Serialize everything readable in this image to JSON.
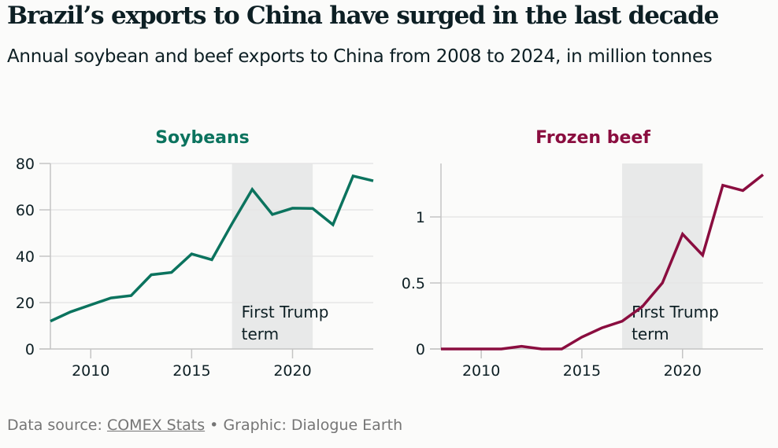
{
  "header": {
    "title": "Brazil’s exports to China have surged in the last decade",
    "subtitle": "Annual soybean and beef exports to China from 2008 to 2024, in million tonnes"
  },
  "footer": {
    "source_prefix": "Data source: ",
    "source_link": "COMEX Stats",
    "separator": " • ",
    "credit": "Graphic: Dialogue Earth"
  },
  "chart_data": [
    {
      "type": "line",
      "title": "Soybeans",
      "color": "#0b735e",
      "xlabel": "",
      "ylabel": "",
      "xlim": [
        2008,
        2024
      ],
      "ylim": [
        0,
        80
      ],
      "x_ticks": [
        2010,
        2015,
        2020
      ],
      "y_ticks": [
        0,
        20,
        40,
        60,
        80
      ],
      "y_tick_labels": [
        "0",
        "20",
        "40",
        "60",
        "80"
      ],
      "grid": true,
      "x": [
        2008,
        2009,
        2010,
        2011,
        2012,
        2013,
        2014,
        2015,
        2016,
        2017,
        2018,
        2019,
        2020,
        2021,
        2022,
        2023,
        2024
      ],
      "values": [
        12,
        16,
        19,
        22,
        23,
        32,
        33,
        41,
        38.5,
        54,
        68.8,
        58,
        60.7,
        60.6,
        53.6,
        74.6,
        72.5
      ],
      "shaded_region": {
        "from": 2017,
        "to": 2021,
        "label_lines": [
          "First Trump",
          "term"
        ]
      }
    },
    {
      "type": "line",
      "title": "Frozen beef",
      "color": "#8a0d3f",
      "xlabel": "",
      "ylabel": "",
      "xlim": [
        2008,
        2024
      ],
      "ylim": [
        0,
        1.4
      ],
      "x_ticks": [
        2010,
        2015,
        2020
      ],
      "y_ticks": [
        0,
        0.5,
        1
      ],
      "y_tick_labels": [
        "0",
        "0.5",
        "1"
      ],
      "grid": true,
      "x": [
        2008,
        2009,
        2010,
        2011,
        2012,
        2013,
        2014,
        2015,
        2016,
        2017,
        2018,
        2019,
        2020,
        2021,
        2022,
        2023,
        2024
      ],
      "values": [
        0,
        0,
        0,
        0,
        0.02,
        0,
        0,
        0.09,
        0.16,
        0.21,
        0.32,
        0.5,
        0.87,
        0.71,
        1.24,
        1.2,
        1.32
      ],
      "shaded_region": {
        "from": 2017,
        "to": 2021,
        "label_lines": [
          "First Trump",
          "term"
        ]
      }
    }
  ]
}
